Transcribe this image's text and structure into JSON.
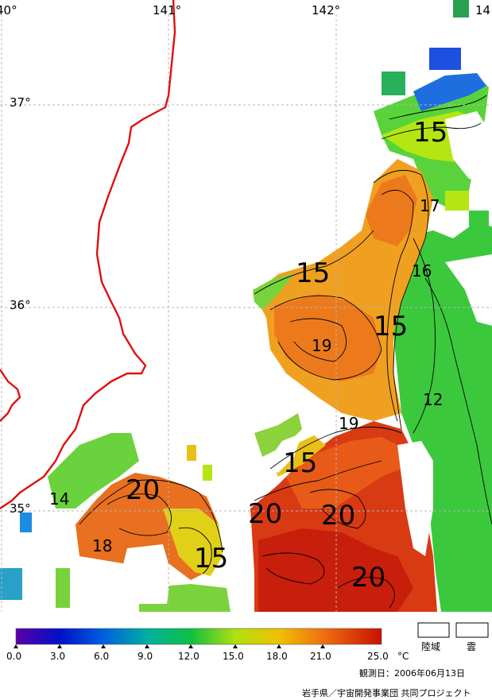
{
  "lon_labels": [
    "40°",
    "141°",
    "142°",
    "14"
  ],
  "lat_labels": [
    "37°",
    "36°",
    "35°"
  ],
  "contour_labels": [
    "15",
    "17",
    "15",
    "16",
    "19",
    "15",
    "12",
    "19",
    "20",
    "15",
    "20",
    "20",
    "14",
    "18",
    "15",
    "20"
  ],
  "colorbar": {
    "ticks": [
      "0.0",
      "3.0",
      "6.0",
      "9.0",
      "12.0",
      "15.0",
      "18.0",
      "21.0",
      "25.0"
    ],
    "unit": "°C",
    "colors": [
      "#5a00a8",
      "#0010c8",
      "#0060e0",
      "#00b0a0",
      "#10c040",
      "#b0e010",
      "#f0c000",
      "#f07010",
      "#c81000"
    ]
  },
  "legend": {
    "land": "陸域",
    "cloud": "雲"
  },
  "observation_date": "観測日：2006年06月13日",
  "credit": "岩手県／宇宙開発事業団  共同プロジェクト",
  "colors": {
    "coastline": "#e01010",
    "grid": "#b4b4b4"
  }
}
